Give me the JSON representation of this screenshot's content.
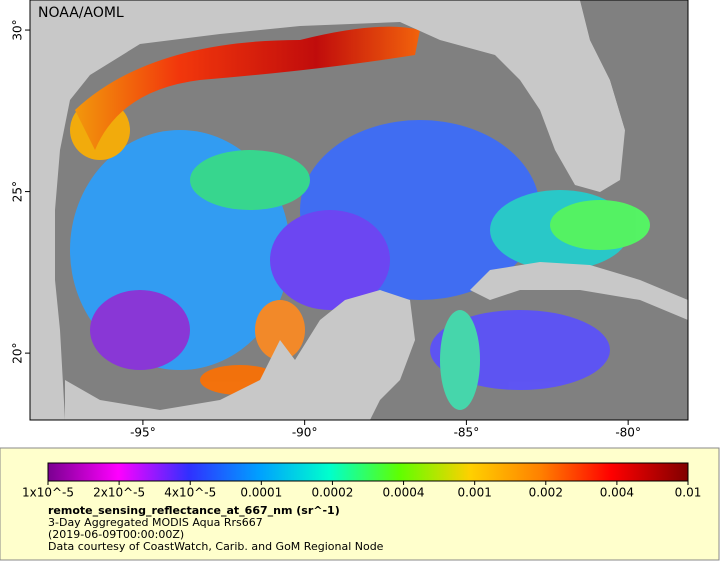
{
  "header": {
    "title": "NOAA/AOML"
  },
  "map": {
    "xlim": [
      -98.49,
      -78.15
    ],
    "ylim": [
      17.93,
      30.93
    ],
    "xticks": [
      {
        "value": -95,
        "label": "-95°"
      },
      {
        "value": -90,
        "label": "-90°"
      },
      {
        "value": -85,
        "label": "-85°"
      },
      {
        "value": -80,
        "label": "-80°"
      }
    ],
    "yticks": [
      {
        "value": 20,
        "label": "20°"
      },
      {
        "value": 25,
        "label": "25°"
      },
      {
        "value": 30,
        "label": "30°"
      }
    ]
  },
  "legend": {
    "ticks": [
      {
        "value": 1e-05,
        "label": "1x10^-5"
      },
      {
        "value": 2e-05,
        "label": "2x10^-5"
      },
      {
        "value": 4e-05,
        "label": "4x10^-5"
      },
      0.0001,
      0.0002,
      0.0004,
      0.001,
      0.002,
      0.004,
      0.01
    ],
    "variable": "remote_sensing_reflectance_at_667_nm (sr^-1)",
    "lines": [
      "3-Day Aggregated MODIS Aqua Rrs667",
      "(2019-06-09T00:00:00Z)",
      "Data courtesy of CoastWatch, Carib. and GoM Regional Node"
    ]
  }
}
